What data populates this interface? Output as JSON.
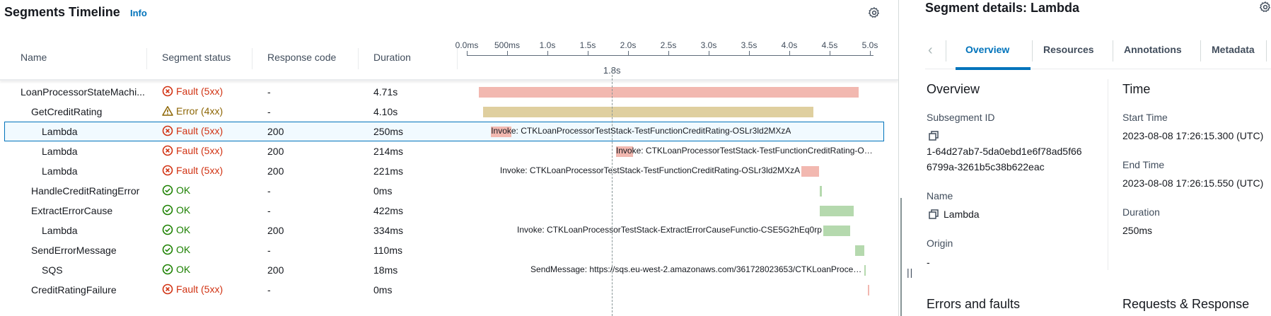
{
  "timeline": {
    "title": "Segments Timeline",
    "info_link": "Info",
    "columns": {
      "name": "Name",
      "status": "Segment status",
      "response": "Response code",
      "duration": "Duration"
    },
    "axis_ticks": [
      "0.0ms",
      "500ms",
      "1.0s",
      "1.5s",
      "2.0s",
      "2.5s",
      "3.0s",
      "3.5s",
      "4.0s",
      "4.5s",
      "5.0s"
    ],
    "cursor_label": "1.8s",
    "rows": [
      {
        "name": "LoanProcessorStateMachi...",
        "status": "Fault (5xx)",
        "status_type": "fault",
        "response": "-",
        "duration": "4.71s",
        "start_s": 0.15,
        "length_s": 4.71,
        "bar_color": "#f2b8b0",
        "label": ""
      },
      {
        "name": "GetCreditRating",
        "status": "Error (4xx)",
        "status_type": "error",
        "response": "-",
        "duration": "4.10s",
        "start_s": 0.2,
        "length_s": 4.1,
        "bar_color": "#dfcf9f",
        "label": ""
      },
      {
        "name": "Lambda",
        "status": "Fault (5xx)",
        "status_type": "fault",
        "response": "200",
        "duration": "250ms",
        "start_s": 0.3,
        "length_s": 0.25,
        "bar_color": "#f2b8b0",
        "label": "Invoke: CTKLoanProcessorTestStack-TestFunctionCreditRating-OSLr3ld2MXzA",
        "label_side": "overlay",
        "selected": true
      },
      {
        "name": "Lambda",
        "status": "Fault (5xx)",
        "status_type": "fault",
        "response": "200",
        "duration": "214ms",
        "start_s": 1.85,
        "length_s": 0.214,
        "bar_color": "#f2b8b0",
        "label": "Invoke: CTKLoanProcessorTestStack-TestFunctionCreditRating-OS...",
        "label_side": "overlay"
      },
      {
        "name": "Lambda",
        "status": "Fault (5xx)",
        "status_type": "fault",
        "response": "200",
        "duration": "221ms",
        "start_s": 4.15,
        "length_s": 0.221,
        "bar_color": "#f2b8b0",
        "label": "Invoke: CTKLoanProcessorTestStack-TestFunctionCreditRating-OSLr3ld2MXzA",
        "label_side": "left"
      },
      {
        "name": "HandleCreditRatingError",
        "status": "OK",
        "status_type": "ok",
        "response": "-",
        "duration": "0ms",
        "start_s": 4.38,
        "length_s": 0.02,
        "bar_color": "#b5d9ae",
        "label": ""
      },
      {
        "name": "ExtractErrorCause",
        "status": "OK",
        "status_type": "ok",
        "response": "-",
        "duration": "422ms",
        "start_s": 4.38,
        "length_s": 0.422,
        "bar_color": "#b5d9ae",
        "label": ""
      },
      {
        "name": "Lambda",
        "status": "OK",
        "status_type": "ok",
        "response": "200",
        "duration": "334ms",
        "start_s": 4.42,
        "length_s": 0.334,
        "bar_color": "#b5d9ae",
        "label": "Invoke: CTKLoanProcessorTestStack-ExtractErrorCauseFunctio-CSE5G2hEq0rp",
        "label_side": "left"
      },
      {
        "name": "SendErrorMessage",
        "status": "OK",
        "status_type": "ok",
        "response": "-",
        "duration": "110ms",
        "start_s": 4.82,
        "length_s": 0.11,
        "bar_color": "#b5d9ae",
        "label": ""
      },
      {
        "name": "SQS",
        "status": "OK",
        "status_type": "ok",
        "response": "200",
        "duration": "18ms",
        "start_s": 4.93,
        "length_s": 0.018,
        "bar_color": "#b5d9ae",
        "label": "SendMessage: https://sqs.eu-west-2.amazonaws.com/361728023653/CTKLoanProcessorTestSta...",
        "label_side": "left"
      },
      {
        "name": "CreditRatingFailure",
        "status": "Fault (5xx)",
        "status_type": "fault",
        "response": "-",
        "duration": "0ms",
        "start_s": 4.97,
        "length_s": 0.02,
        "bar_color": "#f2b8b0",
        "label": ""
      }
    ]
  },
  "details": {
    "title": "Segment details: Lambda",
    "tabs": [
      "Overview",
      "Resources",
      "Annotations",
      "Metadata"
    ],
    "active_tab": "Overview",
    "overview": {
      "heading": "Overview",
      "subsegment_id_label": "Subsegment ID",
      "subsegment_id_line1": "1-64d27ab7-5da0ebd1e6f78ad5f66",
      "subsegment_id_line2": "6799a-3261b5c38b622eac",
      "name_label": "Name",
      "name_value": "Lambda",
      "origin_label": "Origin",
      "origin_value": "-"
    },
    "time": {
      "heading": "Time",
      "start_label": "Start Time",
      "start_value": "2023-08-08 17:26:15.300 (UTC)",
      "end_label": "End Time",
      "end_value": "2023-08-08 17:26:15.550 (UTC)",
      "duration_label": "Duration",
      "duration_value": "250ms"
    },
    "errors_heading": "Errors and faults",
    "requests_heading": "Requests & Response"
  }
}
